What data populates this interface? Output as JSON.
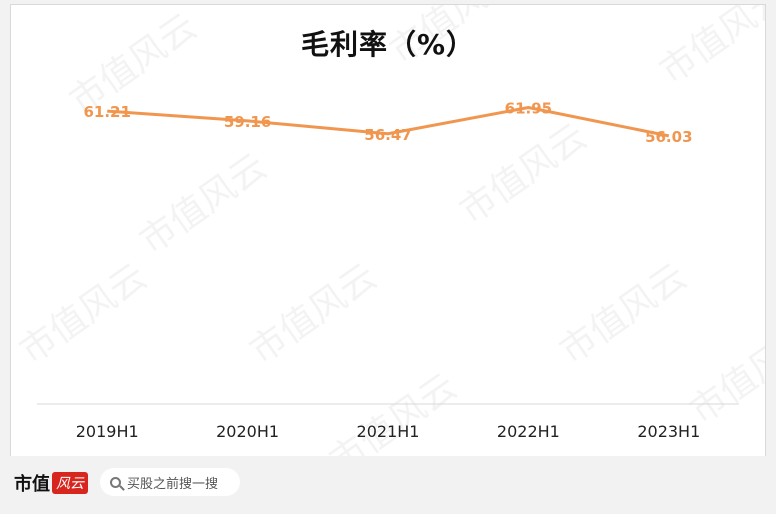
{
  "chart_data": {
    "type": "line",
    "title": "毛利率（%）",
    "categories": [
      "2019H1",
      "2020H1",
      "2021H1",
      "2022H1",
      "2023H1"
    ],
    "series": [
      {
        "values": [
          61.21,
          59.16,
          56.47,
          61.95,
          56.03
        ]
      }
    ],
    "data_labels": [
      "61.21",
      "59.16",
      "56.47",
      "61.95",
      "56.03"
    ],
    "xlabel": "",
    "ylabel": "",
    "ylim": [
      0,
      70
    ],
    "grid": false,
    "legend": "none",
    "colors": {
      "line": "#f0964f",
      "axis": "#d9d9d9"
    }
  },
  "watermark": "市值风云",
  "footer": {
    "brand": "市值",
    "brand_badge": "风云",
    "search_icon": "search-icon",
    "search_text": "买股之前搜一搜"
  }
}
